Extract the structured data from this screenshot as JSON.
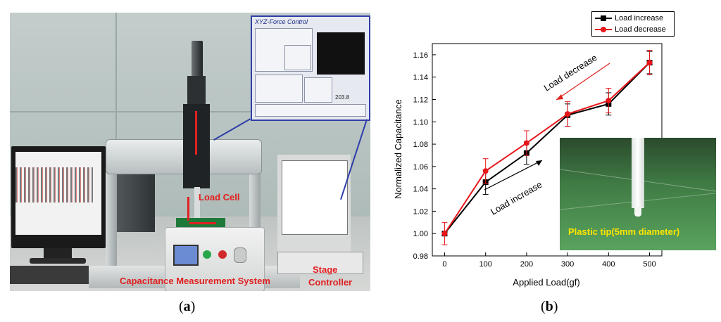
{
  "panel_a": {
    "labels": {
      "load_cell": "Load Cell",
      "capacitance_system": "Capacitance Measurement System",
      "stage_controller_line1": "Stage",
      "stage_controller_line2": "Controller"
    },
    "inset_title": "XYZ-Force Control",
    "inset_readout": "203.8",
    "caption_prefix": "(",
    "caption_letter": "a",
    "caption_suffix": ")"
  },
  "panel_b": {
    "caption_prefix": "(",
    "caption_letter": "b",
    "caption_suffix": ")",
    "inset_label": "Plastic tip(5mm diameter)",
    "annotations": {
      "decrease": "Load decrease",
      "increase": "Load increase"
    }
  },
  "colors": {
    "increase": "#000000",
    "decrease": "#e8161b",
    "annotation_red": "#e02020",
    "callout_blue": "#2f3ea8"
  },
  "chart_data": {
    "type": "line",
    "xlabel": "Applied Load(gf)",
    "ylabel": "Normalized Capacitance",
    "xlim": [
      -30,
      530
    ],
    "ylim": [
      0.98,
      1.17
    ],
    "xticks": [
      0,
      100,
      200,
      300,
      400,
      500
    ],
    "yticks": [
      0.98,
      1.0,
      1.02,
      1.04,
      1.06,
      1.08,
      1.1,
      1.12,
      1.14,
      1.16
    ],
    "xtick_labels": [
      "0",
      "100",
      "200",
      "300",
      "400",
      "500"
    ],
    "ytick_labels": [
      "0.98",
      "1.00",
      "1.02",
      "1.04",
      "1.06",
      "1.08",
      "1.10",
      "1.12",
      "1.14",
      "1.16"
    ],
    "legend_position": "top-right, outside",
    "grid": false,
    "series": [
      {
        "name": "Load increase",
        "marker": "square",
        "color": "#000000",
        "x": [
          0,
          100,
          200,
          300,
          400,
          500
        ],
        "y": [
          1.0,
          1.046,
          1.072,
          1.106,
          1.116,
          1.153
        ],
        "err": [
          0.0,
          0.011,
          0.01,
          0.01,
          0.01,
          0.01
        ]
      },
      {
        "name": "Load decrease",
        "marker": "circle",
        "color": "#e8161b",
        "x": [
          0,
          100,
          200,
          300,
          400,
          500
        ],
        "y": [
          1.0,
          1.056,
          1.081,
          1.107,
          1.119,
          1.153
        ],
        "err": [
          0.01,
          0.011,
          0.011,
          0.011,
          0.011,
          0.011
        ]
      }
    ]
  }
}
